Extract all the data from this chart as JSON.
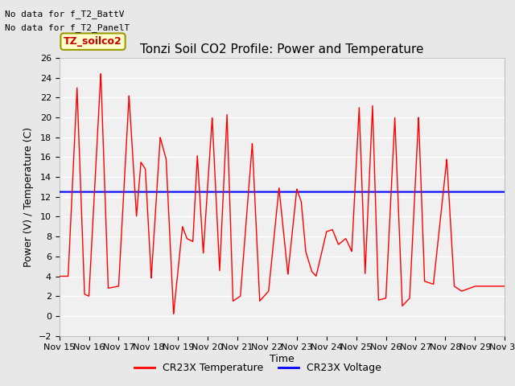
{
  "title": "Tonzi Soil CO2 Profile: Power and Temperature",
  "ylabel": "Power (V) / Temperature (C)",
  "xlabel": "Time",
  "ylim": [
    -2,
    26
  ],
  "yticks": [
    -2,
    0,
    2,
    4,
    6,
    8,
    10,
    12,
    14,
    16,
    18,
    20,
    22,
    24,
    26
  ],
  "xtick_labels": [
    "Nov 15",
    "Nov 16",
    "Nov 17",
    "Nov 18",
    "Nov 19",
    "Nov 20",
    "Nov 21",
    "Nov 22",
    "Nov 23",
    "Nov 24",
    "Nov 25",
    "Nov 26",
    "Nov 27",
    "Nov 28",
    "Nov 29",
    "Nov 30"
  ],
  "no_data_text1": "No data for f_T2_BattV",
  "no_data_text2": "No data for f_T2_PanelT",
  "legend_box_label": "TZ_soilco2",
  "legend_box_color": "#ffffcc",
  "legend_box_edge": "#999900",
  "voltage_value": 12.5,
  "voltage_color": "#0000ff",
  "temp_color": "#ff0000",
  "background_color": "#e8e8e8",
  "plot_bg_color": "#f0f0f0",
  "grid_color": "#ffffff",
  "title_fontsize": 11,
  "axis_fontsize": 9,
  "tick_fontsize": 8,
  "legend_fontsize": 9,
  "annotation_fontsize": 8,
  "peaks": [
    {
      "day": 15.3,
      "val": 4.0
    },
    {
      "day": 15.6,
      "val": 23.0
    },
    {
      "day": 15.85,
      "val": 2.2
    },
    {
      "day": 16.0,
      "val": 2.0
    },
    {
      "day": 16.4,
      "val": 24.5
    },
    {
      "day": 16.65,
      "val": 2.8
    },
    {
      "day": 17.0,
      "val": 3.0
    },
    {
      "day": 17.35,
      "val": 22.2
    },
    {
      "day": 17.6,
      "val": 10.0
    },
    {
      "day": 17.75,
      "val": 15.5
    },
    {
      "day": 17.9,
      "val": 14.8
    },
    {
      "day": 18.1,
      "val": 3.8
    },
    {
      "day": 18.4,
      "val": 18.0
    },
    {
      "day": 18.6,
      "val": 15.8
    },
    {
      "day": 18.85,
      "val": 0.2
    },
    {
      "day": 19.15,
      "val": 9.0
    },
    {
      "day": 19.3,
      "val": 7.8
    },
    {
      "day": 19.5,
      "val": 7.5
    },
    {
      "day": 19.65,
      "val": 16.2
    },
    {
      "day": 19.85,
      "val": 6.3
    },
    {
      "day": 20.15,
      "val": 20.0
    },
    {
      "day": 20.4,
      "val": 4.5
    },
    {
      "day": 20.65,
      "val": 20.3
    },
    {
      "day": 20.85,
      "val": 1.5
    },
    {
      "day": 21.1,
      "val": 2.0
    },
    {
      "day": 21.5,
      "val": 17.4
    },
    {
      "day": 21.75,
      "val": 1.5
    },
    {
      "day": 22.05,
      "val": 2.5
    },
    {
      "day": 22.4,
      "val": 12.9
    },
    {
      "day": 22.7,
      "val": 4.2
    },
    {
      "day": 23.0,
      "val": 12.8
    },
    {
      "day": 23.15,
      "val": 11.5
    },
    {
      "day": 23.3,
      "val": 6.5
    },
    {
      "day": 23.5,
      "val": 4.5
    },
    {
      "day": 23.65,
      "val": 4.0
    },
    {
      "day": 24.0,
      "val": 8.5
    },
    {
      "day": 24.2,
      "val": 8.7
    },
    {
      "day": 24.4,
      "val": 7.2
    },
    {
      "day": 24.65,
      "val": 7.8
    },
    {
      "day": 24.85,
      "val": 6.5
    },
    {
      "day": 25.1,
      "val": 21.0
    },
    {
      "day": 25.3,
      "val": 4.2
    },
    {
      "day": 25.55,
      "val": 21.2
    },
    {
      "day": 25.75,
      "val": 1.6
    },
    {
      "day": 26.0,
      "val": 1.8
    },
    {
      "day": 26.3,
      "val": 20.0
    },
    {
      "day": 26.55,
      "val": 1.0
    },
    {
      "day": 26.8,
      "val": 1.8
    },
    {
      "day": 27.1,
      "val": 20.1
    },
    {
      "day": 27.3,
      "val": 3.5
    },
    {
      "day": 27.6,
      "val": 3.2
    },
    {
      "day": 28.05,
      "val": 15.8
    },
    {
      "day": 28.3,
      "val": 3.0
    },
    {
      "day": 28.55,
      "val": 2.5
    },
    {
      "day": 29.0,
      "val": 3.0
    }
  ]
}
